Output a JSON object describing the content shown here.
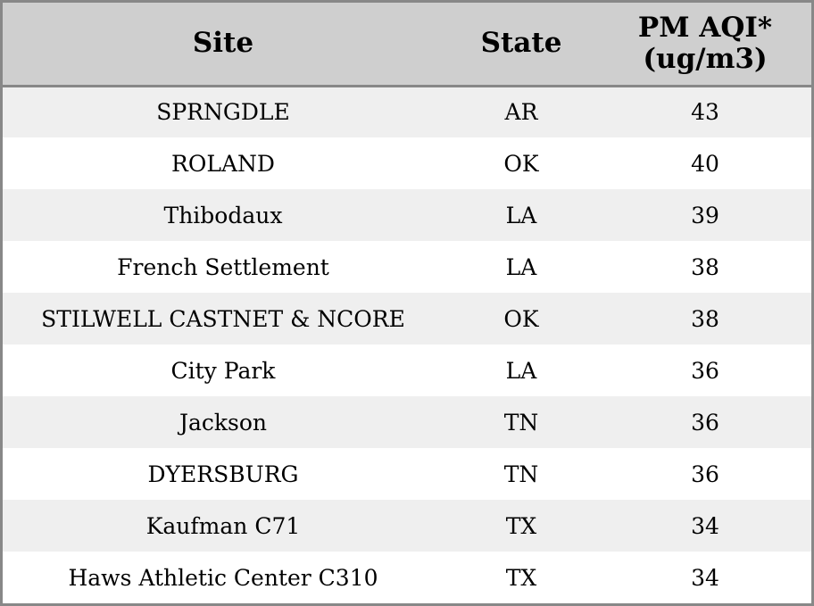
{
  "table": {
    "headers": {
      "site": "Site",
      "state": "State",
      "pm_line1": "PM AQI*",
      "pm_line2": "(ug/m3)"
    },
    "rows": [
      {
        "site": "SPRNGDLE",
        "state": "AR",
        "pm": "43"
      },
      {
        "site": "ROLAND",
        "state": "OK",
        "pm": "40"
      },
      {
        "site": "Thibodaux",
        "state": "LA",
        "pm": "39"
      },
      {
        "site": "French Settlement",
        "state": "LA",
        "pm": "38"
      },
      {
        "site": "STILWELL CASTNET & NCORE",
        "state": "OK",
        "pm": "38"
      },
      {
        "site": "City Park",
        "state": "LA",
        "pm": "36"
      },
      {
        "site": "Jackson",
        "state": "TN",
        "pm": "36"
      },
      {
        "site": "DYERSBURG",
        "state": "TN",
        "pm": "36"
      },
      {
        "site": "Kaufman C71",
        "state": "TX",
        "pm": "34"
      },
      {
        "site": "Haws Athletic Center C310",
        "state": "TX",
        "pm": "34"
      }
    ]
  },
  "colors": {
    "header_bg": "#cfcfcf",
    "row_shade": "#efefef",
    "row_plain": "#ffffff",
    "border": "#888888"
  }
}
